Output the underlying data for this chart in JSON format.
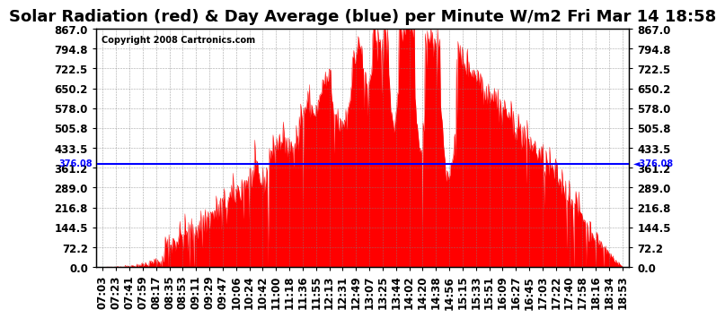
{
  "title": "Solar Radiation (red) & Day Average (blue) per Minute W/m2 Fri Mar 14 18:58",
  "copyright": "Copyright 2008 Cartronics.com",
  "y_min": 0.0,
  "y_max": 867.0,
  "y_ticks": [
    0.0,
    72.2,
    144.5,
    216.8,
    289.0,
    361.2,
    433.5,
    505.8,
    578.0,
    650.2,
    722.5,
    794.8,
    867.0
  ],
  "y_tick_labels": [
    "0.0",
    "72.2",
    "144.5",
    "216.8",
    "289.0",
    "361.2",
    "433.5",
    "505.8",
    "578.0",
    "650.2",
    "722.5",
    "794.8",
    "867.0"
  ],
  "day_average": 376.08,
  "fill_color": "red",
  "line_color": "blue",
  "background_color": "white",
  "x_labels": [
    "07:03",
    "07:23",
    "07:41",
    "07:59",
    "08:17",
    "08:35",
    "08:53",
    "09:11",
    "09:29",
    "09:47",
    "10:06",
    "10:24",
    "10:42",
    "11:00",
    "11:18",
    "11:36",
    "11:55",
    "12:13",
    "12:31",
    "12:49",
    "13:07",
    "13:25",
    "13:44",
    "14:02",
    "14:20",
    "14:38",
    "14:56",
    "15:15",
    "15:33",
    "15:51",
    "16:09",
    "16:27",
    "16:45",
    "17:03",
    "17:22",
    "17:40",
    "17:58",
    "18:16",
    "18:34",
    "18:53"
  ],
  "title_fontsize": 13,
  "tick_fontsize": 8.5
}
